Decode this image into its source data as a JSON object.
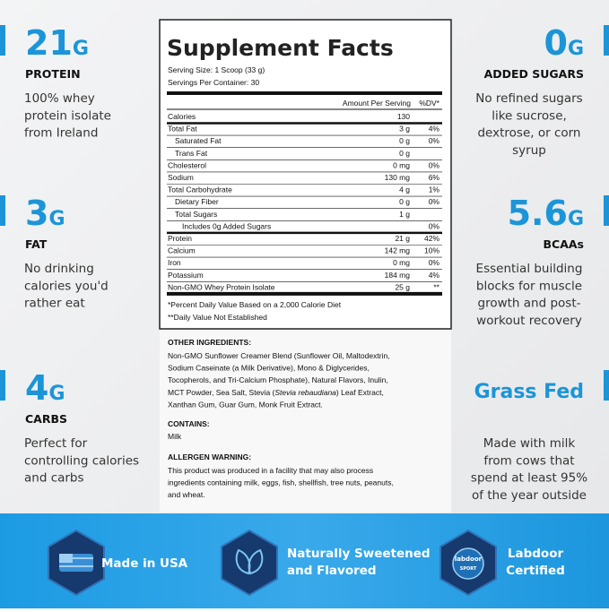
{
  "stats_left": [
    {
      "value": 21,
      "unit": "G",
      "label": "PROTEIN",
      "lines": [
        "100% whey",
        "protein isolate",
        "from Ireland"
      ]
    },
    {
      "value": 3,
      "unit": "G",
      "label": "FAT",
      "lines": [
        "No drinking",
        "calories you'd",
        "rather eat"
      ]
    },
    {
      "value": 4,
      "unit": "G",
      "label": "CARBS",
      "lines": [
        "Perfect for",
        "controlling calories",
        "and carbs"
      ]
    }
  ],
  "stats_right": [
    {
      "value": 0,
      "unit": "G",
      "label": "ADDED SUGARS",
      "lines": [
        "No refined sugars",
        "like sucrose,",
        "dextrose, or corn",
        "syrup"
      ]
    },
    {
      "value": 5.6,
      "unit": "G",
      "label": "BCAAs",
      "lines": [
        "Essential building",
        "blocks for muscle",
        "growth and post-",
        "workout recovery"
      ]
    },
    {
      "headline": "Grass Fed",
      "lines": [
        "Made with milk",
        "from cows that",
        "spend at least 95%",
        "of the year outside"
      ]
    }
  ],
  "facts": {
    "title": "Supplement Facts",
    "serving_size": "Serving Size: 1 Scoop (33 g)",
    "servings": "Servings Per Container: 30",
    "amount_header": "Amount Per Serving",
    "dv_header": "%DV*",
    "rows": [
      [
        "Calories",
        "130",
        ""
      ],
      [
        "Total Fat",
        "3 g",
        "4%"
      ],
      [
        "Saturated Fat",
        "0 g",
        "0%"
      ],
      [
        "Trans Fat",
        "0 g",
        ""
      ],
      [
        "Cholesterol",
        "0 mg",
        "0%"
      ],
      [
        "Sodium",
        "130 mg",
        "6%"
      ],
      [
        "Total Carbohydrate",
        "4 g",
        "1%"
      ],
      [
        "Dietary Fiber",
        "0 g",
        "0%"
      ],
      [
        "Total Sugars",
        "1 g",
        ""
      ],
      [
        "Includes 0g Added Sugars",
        "",
        "0%"
      ],
      [
        "Protein",
        "21 g",
        "42%"
      ],
      [
        "Calcium",
        "142 mg",
        "10%"
      ],
      [
        "Iron",
        "0 mg",
        "0%"
      ],
      [
        "Potassium",
        "184 mg",
        "4%"
      ],
      [
        "Non-GMO Whey Protein Isolate",
        "25 g",
        "**"
      ]
    ],
    "footnotes": [
      "*Percent Daily Value Based on a 2,000 Calorie Diet",
      "**Daily Value Not Established"
    ]
  },
  "ingredients": {
    "heading": "OTHER INGREDIENTS:",
    "lines": [
      [
        {
          "text": "Non-GMO Sunflower Creamer Blend (Sunflower Oil, Maltodextrin,"
        }
      ],
      [
        {
          "text": "Sodium Caseinate (a Milk Derivative), Mono & Diglycerides,"
        }
      ],
      [
        {
          "text": "Tocopherols, and Tri-Calcium Phosphate), Natural Flavors, Inulin,"
        }
      ],
      [
        {
          "text": "MCT Powder, Sea Salt, Stevia ("
        },
        {
          "text": "Stevia rebaudiana",
          "italic": true
        },
        {
          "text": ") Leaf Extract,"
        }
      ],
      [
        {
          "text": "Xanthan Gum, Guar Gum, Monk Fruit Extract."
        }
      ]
    ],
    "contains_heading": "CONTAINS:",
    "contains": "Milk",
    "allergen_heading": "ALLERGEN WARNING:",
    "allergen_lines": [
      "This product was produced in a facility that may also process",
      "ingredients containing milk, eggs, fish, shellfish, tree nuts, peanuts,",
      "and wheat."
    ]
  },
  "badges": [
    {
      "lines": [
        "Made in USA"
      ]
    },
    {
      "lines": [
        "Naturally Sweetened",
        "and Flavored"
      ]
    },
    {
      "lines": [
        "Labdoor",
        "Certified"
      ],
      "icon_texts": [
        "labdoor",
        "SPORT"
      ]
    }
  ]
}
